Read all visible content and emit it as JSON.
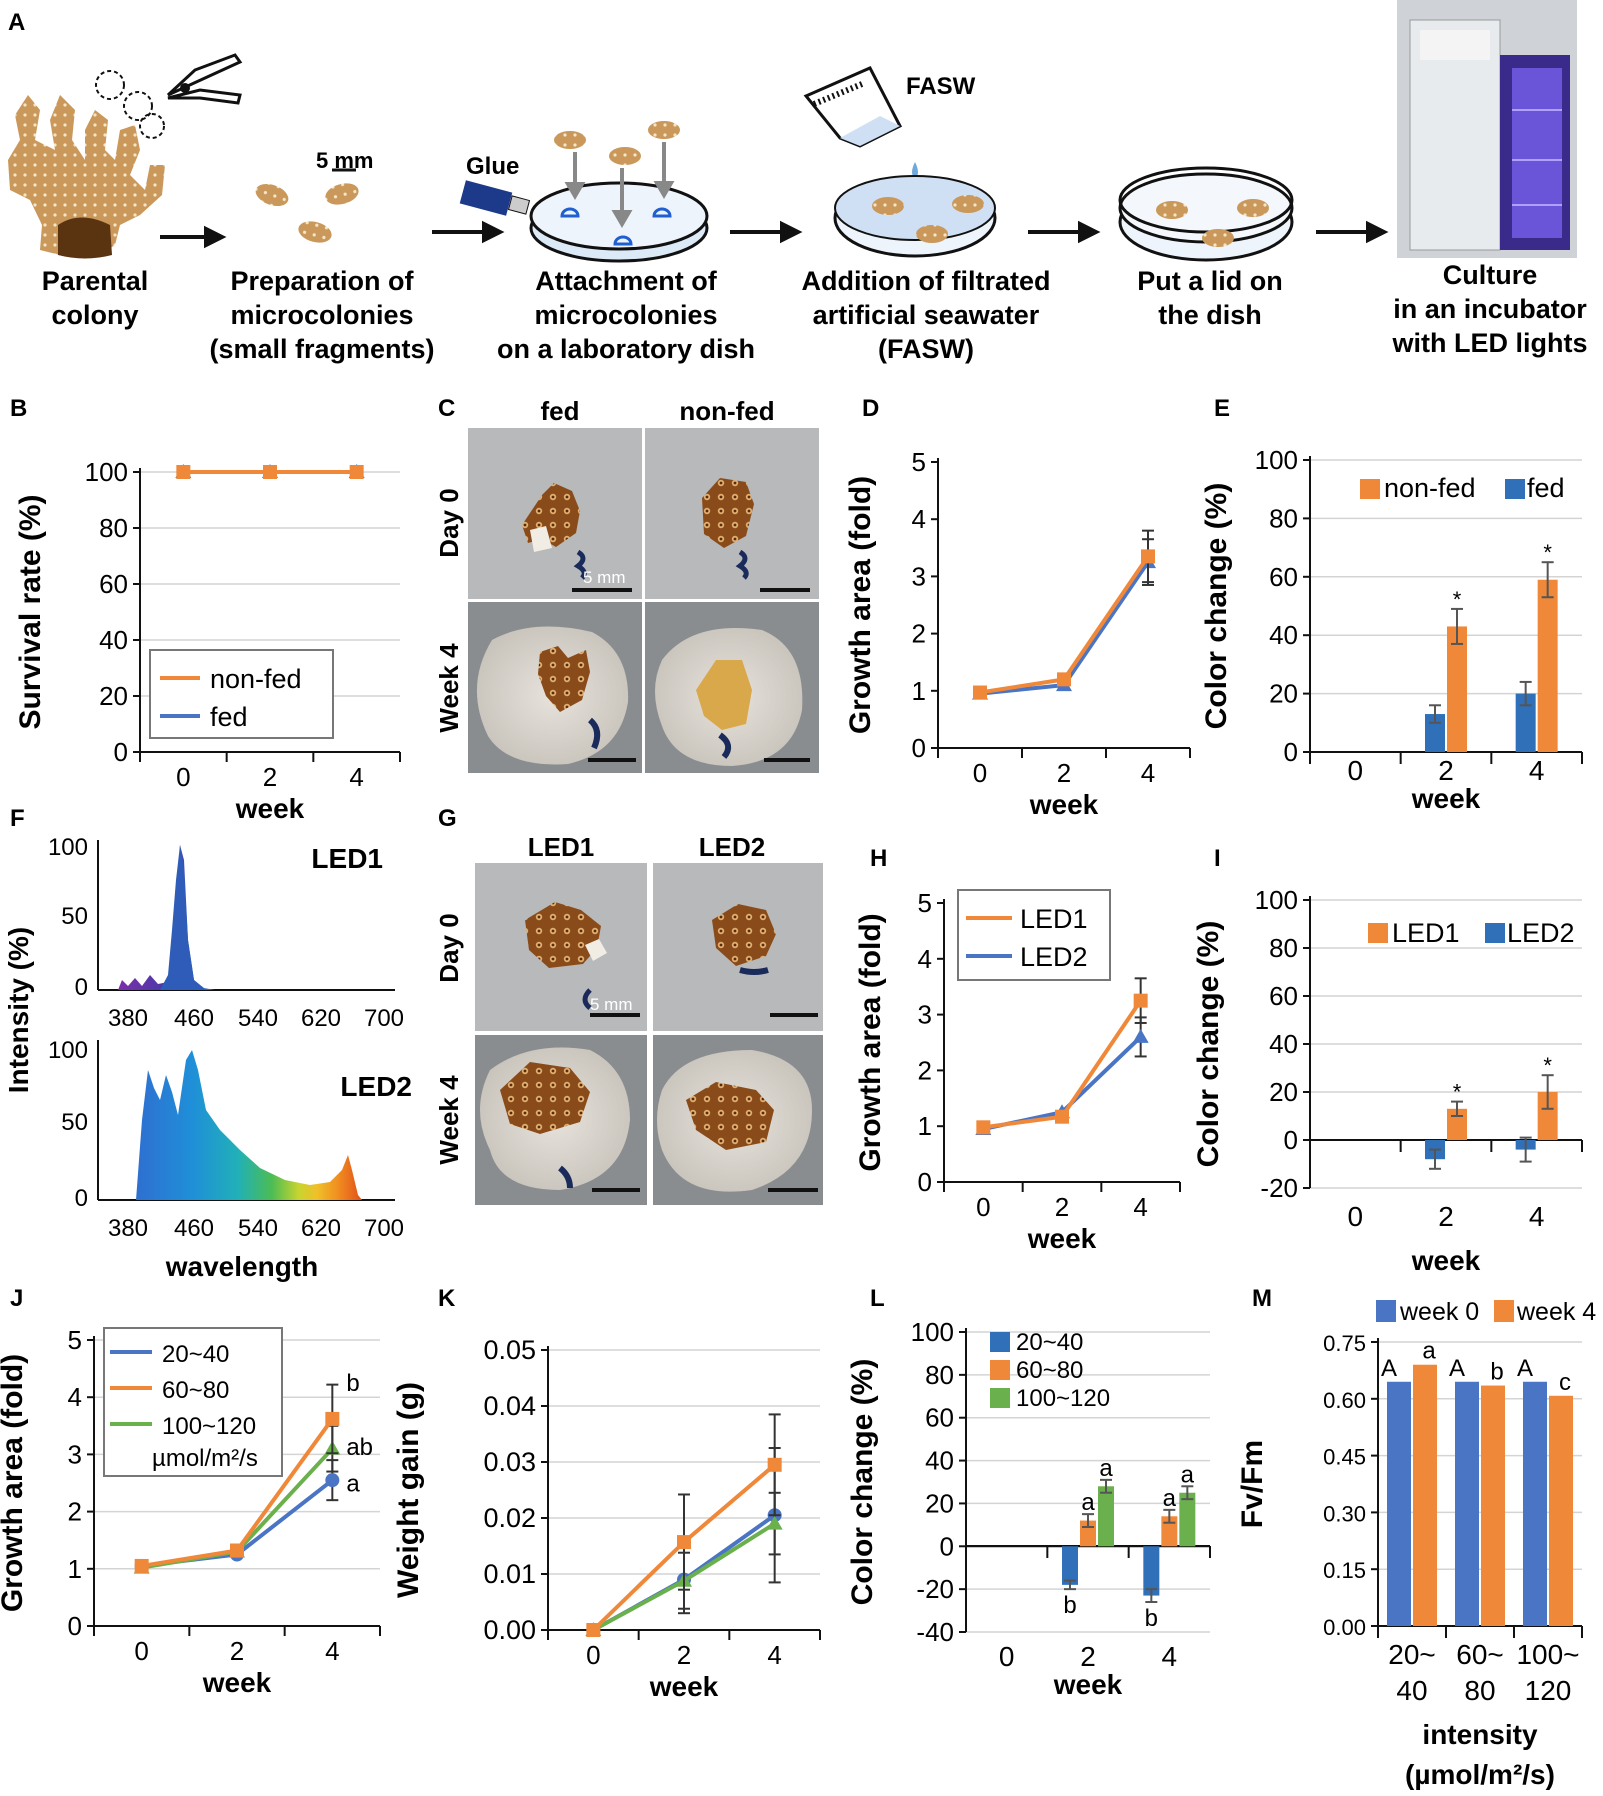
{
  "colors": {
    "orange": "#f0883a",
    "blue": "#4a74c4",
    "blue_bar": "#2f70b8",
    "green": "#6ab04c",
    "coral": "#c9985a",
    "grid": "#d4d4d4",
    "axis": "#111111",
    "dish": "#dce9f6"
  },
  "panels": {
    "A": {
      "letter": "A",
      "scale": "5 mm",
      "glue": "Glue",
      "fasw": "FASW",
      "steps": [
        {
          "lines": [
            "Parental",
            "colony"
          ]
        },
        {
          "lines": [
            "Preparation of",
            "microcolonies",
            "(small fragments)"
          ]
        },
        {
          "lines": [
            "Attachment of",
            "microcolonies",
            "on a laboratory dish"
          ]
        },
        {
          "lines": [
            "Addition of filtrated",
            "artificial seawater",
            "(FASW)"
          ]
        },
        {
          "lines": [
            "Put a lid on",
            "the dish"
          ]
        },
        {
          "lines": [
            "Culture",
            "in an incubator",
            "with LED lights"
          ]
        }
      ]
    },
    "C": {
      "letter": "C",
      "cols": [
        "fed",
        "non-fed"
      ],
      "rows": [
        "Day 0",
        "Week 4"
      ],
      "scale": "5 mm"
    },
    "F": {
      "letter": "F",
      "ylabel": "Intensity (%)",
      "xlabel": "wavelength",
      "ticks_x": [
        "380",
        "460",
        "540",
        "620",
        "700"
      ],
      "ticks_y": [
        "0",
        "50",
        "100"
      ],
      "labels": [
        "LED1",
        "LED2"
      ]
    },
    "G": {
      "letter": "G",
      "cols": [
        "LED1",
        "LED2"
      ],
      "rows": [
        "Day 0",
        "Week 4"
      ],
      "scale": "5 mm"
    }
  },
  "chart_data": [
    {
      "id": "B",
      "type": "line",
      "xlabel": "week",
      "ylabel": "Survival rate (%)",
      "x": [
        0,
        2,
        4
      ],
      "ylim": [
        0,
        100
      ],
      "yticks": [
        0,
        20,
        40,
        60,
        80,
        100
      ],
      "series": [
        {
          "name": "non-fed",
          "values": [
            100,
            100,
            100
          ]
        },
        {
          "name": "fed",
          "values": [
            100,
            100,
            100
          ]
        }
      ]
    },
    {
      "id": "D",
      "type": "line",
      "xlabel": "week",
      "ylabel": "Growth area (fold)",
      "x": [
        0,
        2,
        4
      ],
      "ylim": [
        0,
        5
      ],
      "yticks": [
        0,
        1,
        2,
        3,
        4,
        5
      ],
      "series": [
        {
          "name": "non-fed",
          "values": [
            0.97,
            1.2,
            3.35
          ],
          "err": [
            0,
            0,
            0.45
          ]
        },
        {
          "name": "fed",
          "values": [
            0.95,
            1.1,
            3.25
          ],
          "err": [
            0,
            0,
            0.4
          ]
        }
      ]
    },
    {
      "id": "E",
      "type": "bar",
      "xlabel": "week",
      "ylabel": "Color change  (%)",
      "categories": [
        "0",
        "2",
        "4"
      ],
      "ylim": [
        0,
        100
      ],
      "yticks": [
        0,
        20,
        40,
        60,
        80,
        100
      ],
      "series": [
        {
          "name": "fed",
          "values": [
            0,
            13,
            20
          ],
          "err": [
            0,
            3,
            4
          ]
        },
        {
          "name": "non-fed",
          "values": [
            0,
            43,
            59
          ],
          "err": [
            0,
            6,
            6
          ]
        }
      ],
      "legend": [
        "non-fed",
        "fed"
      ],
      "annotations": [
        "",
        "*",
        "*"
      ]
    },
    {
      "id": "H",
      "type": "line",
      "xlabel": "week",
      "ylabel": "Growth area (fold)",
      "x": [
        0,
        2,
        4
      ],
      "ylim": [
        0,
        5
      ],
      "yticks": [
        0,
        1,
        2,
        3,
        4,
        5
      ],
      "series": [
        {
          "name": "LED1",
          "values": [
            0.98,
            1.17,
            3.25
          ],
          "err": [
            0,
            0,
            0.4
          ]
        },
        {
          "name": "LED2",
          "values": [
            0.95,
            1.25,
            2.6
          ],
          "err": [
            0,
            0,
            0.35
          ]
        }
      ]
    },
    {
      "id": "I",
      "type": "bar",
      "xlabel": "week",
      "ylabel": "Color change  (%)",
      "categories": [
        "0",
        "2",
        "4"
      ],
      "ylim": [
        -20,
        100
      ],
      "yticks": [
        -20,
        0,
        20,
        40,
        60,
        80,
        100
      ],
      "series": [
        {
          "name": "LED2",
          "values": [
            0,
            -8,
            -4
          ],
          "err": [
            0,
            4,
            5
          ]
        },
        {
          "name": "LED1",
          "values": [
            0,
            13,
            20
          ],
          "err": [
            0,
            3,
            7
          ]
        }
      ],
      "legend": [
        "LED1",
        "LED2"
      ],
      "annotations": [
        "",
        "*",
        "*"
      ]
    },
    {
      "id": "J",
      "type": "line",
      "xlabel": "week",
      "ylabel": "Growth area (fold)",
      "x": [
        0,
        2,
        4
      ],
      "ylim": [
        0,
        5
      ],
      "yticks": [
        0,
        1,
        2,
        3,
        4,
        5
      ],
      "series": [
        {
          "name": "20~40",
          "values": [
            1.05,
            1.25,
            2.55
          ],
          "err": [
            0,
            0,
            0.35
          ]
        },
        {
          "name": "60~80",
          "values": [
            1.05,
            1.32,
            3.62
          ],
          "err": [
            0,
            0,
            0.6
          ]
        },
        {
          "name": "100~120",
          "values": [
            1.02,
            1.3,
            3.1
          ],
          "err": [
            0,
            0,
            0.4
          ]
        }
      ],
      "legend_note": "µmol/m²/s",
      "letters": [
        "a",
        "b",
        "ab"
      ]
    },
    {
      "id": "K",
      "type": "line",
      "xlabel": "week",
      "ylabel": "Weight gain (g)",
      "x": [
        0,
        2,
        4
      ],
      "ylim": [
        0,
        0.05
      ],
      "yticks": [
        "0.00",
        "0.01",
        "0.02",
        "0.03",
        "0.04",
        "0.05"
      ],
      "series": [
        {
          "name": "20~40",
          "values": [
            0,
            0.009,
            0.0205
          ],
          "err": [
            0,
            0.006,
            0.012
          ]
        },
        {
          "name": "60~80",
          "values": [
            0,
            0.0157,
            0.0295
          ],
          "err": [
            0,
            0.0085,
            0.009
          ]
        },
        {
          "name": "100~120",
          "values": [
            0,
            0.0088,
            0.019
          ],
          "err": [
            0,
            0.005,
            0.0055
          ]
        }
      ]
    },
    {
      "id": "L",
      "type": "bar",
      "xlabel": "week",
      "ylabel": "Color change  (%)",
      "categories": [
        "0",
        "2",
        "4"
      ],
      "ylim": [
        -40,
        100
      ],
      "yticks": [
        -40,
        -20,
        0,
        20,
        40,
        60,
        80,
        100
      ],
      "series": [
        {
          "name": "20~40",
          "values": [
            0,
            -18,
            -23
          ],
          "err": [
            0,
            2,
            3
          ]
        },
        {
          "name": "60~80",
          "values": [
            0,
            12,
            14
          ],
          "err": [
            0,
            3,
            3
          ]
        },
        {
          "name": "100~120",
          "values": [
            0,
            28,
            25
          ],
          "err": [
            0,
            3,
            3
          ]
        }
      ],
      "letters": [
        [
          "",
          "",
          ""
        ],
        [
          "b",
          "a",
          "a"
        ],
        [
          "b",
          "a",
          "a"
        ]
      ]
    },
    {
      "id": "M",
      "type": "bar",
      "xlabel": "intensity",
      "xlabel2": "(µmol/m²/s)",
      "ylabel": "Fv/Fm",
      "categories": [
        "20~ 40",
        "60~ 80",
        "100~ 120"
      ],
      "ylim": [
        0,
        0.75
      ],
      "yticks": [
        "0.00",
        "0.15",
        "0.30",
        "0.45",
        "0.60",
        "0.75"
      ],
      "series": [
        {
          "name": "week 0",
          "values": [
            0.645,
            0.645,
            0.645
          ]
        },
        {
          "name": "week 4",
          "values": [
            0.69,
            0.635,
            0.608
          ]
        }
      ],
      "letters": [
        [
          "A",
          "a"
        ],
        [
          "A",
          "b"
        ],
        [
          "A",
          "c"
        ]
      ]
    }
  ]
}
